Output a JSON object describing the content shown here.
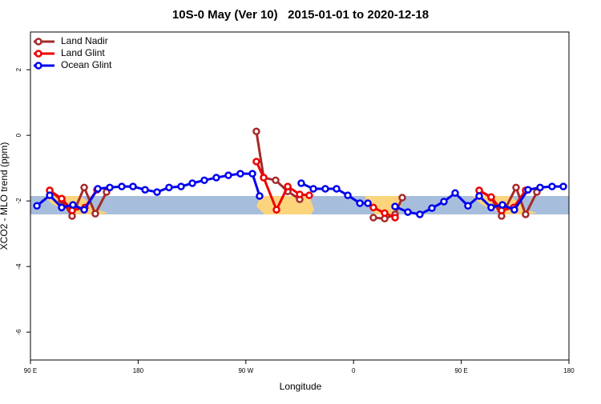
{
  "chart_data": {
    "type": "line",
    "title": "10S-0 May (Ver 10)   2015-01-01 to 2020-12-18",
    "x_label": "Longitude",
    "y_label": "XCO2 - MLO trend (ppm)",
    "xlim": [
      90,
      540
    ],
    "xticks": [
      {
        "value": 90,
        "label": "90 E"
      },
      180,
      {
        "value": 270,
        "label": "90 W"
      },
      {
        "value": 360,
        "label": "0"
      },
      {
        "value": 450,
        "label": "90 E"
      },
      {
        "value": 540,
        "label": "180"
      }
    ],
    "ylim": [
      -6.85,
      3.15
    ],
    "yticks": [
      -6,
      -4,
      -2,
      0,
      2
    ],
    "legend": "top-left",
    "series": [
      {
        "name": "Land Nadir",
        "color": "#a52a2a",
        "x": [
          106.1,
          116.1,
          124.8,
          134.9,
          144.2,
          153.6,
          null,
          278.8,
          284.9,
          294.9,
          305,
          315,
          null,
          376.6,
          386,
          394.7,
          400.7,
          null,
          465,
          475,
          483.7,
          495.8,
          503.8,
          513.2
        ],
        "values": [
          -1.68,
          -1.98,
          -2.46,
          -1.59,
          -2.39,
          -1.73,
          null,
          0.12,
          -1.29,
          -1.37,
          -1.71,
          -1.95,
          null,
          -2.51,
          -2.54,
          -2.41,
          -1.9,
          null,
          -1.68,
          -1.9,
          -2.46,
          -1.59,
          -2.41,
          -1.73
        ]
      },
      {
        "name": "Land Glint",
        "color": "#ee0000",
        "x": [
          106.1,
          116.1,
          124.8,
          135.5,
          145.6,
          null,
          278.8,
          284.9,
          295.6,
          305,
          315,
          323,
          null,
          376.6,
          386,
          394.7,
          null,
          465,
          475,
          483.7,
          493.8,
          503.8
        ],
        "values": [
          -1.68,
          -1.93,
          -2.29,
          -2.2,
          -1.66,
          null,
          -0.8,
          -1.29,
          -2.27,
          -1.56,
          -1.8,
          -1.83,
          null,
          -2.2,
          -2.37,
          -2.51,
          null,
          -1.68,
          -1.88,
          -2.29,
          -2.2,
          -1.68
        ]
      },
      {
        "name": "Ocean Glint",
        "color": "#0000ee",
        "x": [
          95.4,
          106.1,
          116.1,
          125.5,
          134.9,
          146.3,
          156.3,
          166.3,
          175.7,
          185.8,
          195.8,
          205.8,
          215.9,
          225.3,
          235.3,
          245.3,
          255.4,
          265.4,
          275.5,
          281.5,
          null,
          316.3,
          326.4,
          336.4,
          345.8,
          355.2,
          365.3,
          372,
          null,
          394.7,
          405.4,
          415.4,
          425.5,
          435.5,
          444.9,
          455.6,
          465,
          475,
          484.4,
          494.4,
          505.8,
          515.9,
          525.9,
          535.3
        ],
        "values": [
          -2.15,
          -1.83,
          -2.2,
          -2.12,
          -2.27,
          -1.63,
          -1.59,
          -1.56,
          -1.56,
          -1.66,
          -1.73,
          -1.59,
          -1.56,
          -1.46,
          -1.37,
          -1.29,
          -1.22,
          -1.17,
          -1.17,
          -1.85,
          null,
          -1.46,
          -1.63,
          -1.63,
          -1.63,
          -1.83,
          -2.07,
          -2.07,
          null,
          -2.17,
          -2.34,
          -2.41,
          -2.22,
          -2.02,
          -1.76,
          -2.15,
          -1.85,
          -2.2,
          -2.12,
          -2.27,
          -1.66,
          -1.59,
          -1.56,
          -1.56
        ]
      }
    ]
  }
}
